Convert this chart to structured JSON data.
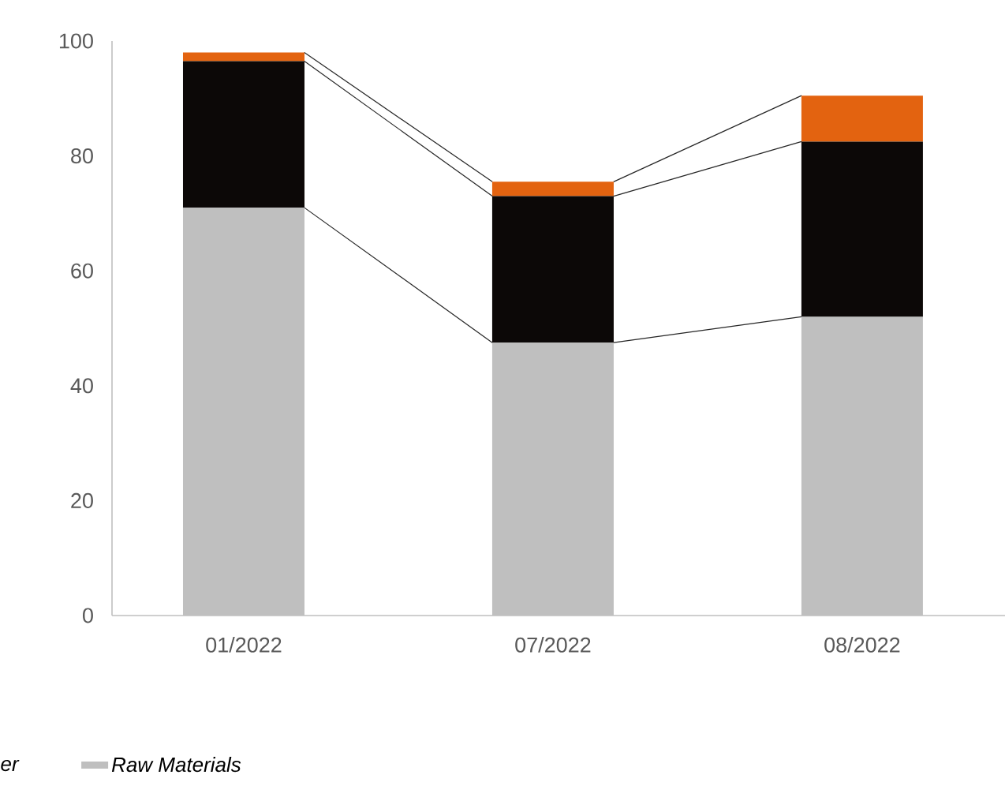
{
  "chart_data": {
    "type": "bar",
    "stacked": true,
    "categories": [
      "01/2022",
      "07/2022",
      "08/2022"
    ],
    "series": [
      {
        "name": "Raw Materials",
        "color": "#bfbfbf",
        "values": [
          71,
          47.5,
          52
        ]
      },
      {
        "color": "#0c0807",
        "values": [
          25.5,
          25.5,
          30.5
        ]
      },
      {
        "color": "#e36310",
        "values": [
          1.5,
          2.5,
          8
        ]
      }
    ],
    "ylim": [
      0,
      100
    ],
    "yticks": [
      0,
      20,
      40,
      60,
      80,
      100
    ],
    "legend": "bottom left",
    "annotations": [
      "er"
    ]
  }
}
